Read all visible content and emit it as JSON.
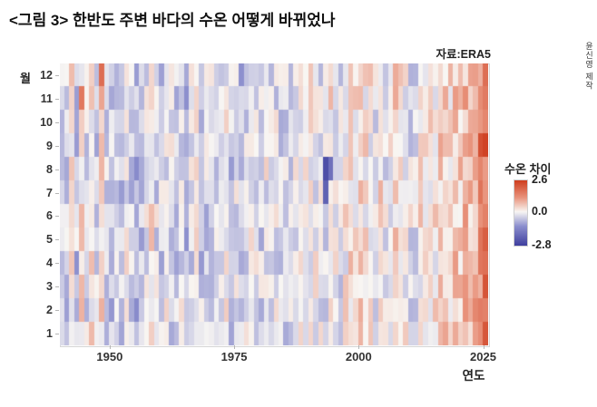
{
  "page": {
    "title": "<그림 3> 한반도 주변 바다의 수온 어떻게 바뀌었나",
    "source": "자료:ERA5",
    "credit": "윤신영 제작"
  },
  "axes": {
    "y_label": "월",
    "x_label": "연도",
    "y_ticks": [
      "12",
      "11",
      "10",
      "9",
      "8",
      "7",
      "6",
      "5",
      "4",
      "3",
      "2",
      "1"
    ],
    "x_ticks": [
      "1950",
      "1975",
      "2000",
      "2025"
    ]
  },
  "legend": {
    "title": "수온 차이",
    "max_label": "2.6",
    "mid_label": "0.0",
    "min_label": "-2.8"
  },
  "chart_data": {
    "type": "heatmap",
    "title": "한반도 주변 바다의 수온 차이 (월별, 연도별)",
    "xlabel": "연도",
    "ylabel": "월",
    "x_start_year": 1940,
    "x_end_year": 2025,
    "x_tick_years": [
      1950,
      1975,
      2000,
      2025
    ],
    "months": [
      1,
      2,
      3,
      4,
      5,
      6,
      7,
      8,
      9,
      10,
      11,
      12
    ],
    "value_range": [
      -2.8,
      2.6
    ],
    "legend_title": "수온 차이",
    "legend_ticks": [
      2.6,
      0.0,
      -2.8
    ],
    "colormap": [
      {
        "v": -2.8,
        "c": "#3f3f9e"
      },
      {
        "v": -1.2,
        "c": "#8b8ecd"
      },
      {
        "v": 0.0,
        "c": "#f8f6f3"
      },
      {
        "v": 1.2,
        "c": "#e8917a"
      },
      {
        "v": 2.6,
        "c": "#ce3d1e"
      }
    ],
    "year_mean_anomaly": [
      -0.2,
      -0.5,
      0.1,
      -0.6,
      0.3,
      -0.4,
      0.2,
      -0.5,
      0.4,
      -0.3,
      -0.6,
      -0.2,
      -0.5,
      0.0,
      -0.4,
      -0.7,
      -0.5,
      -0.1,
      0.2,
      -0.3,
      -0.4,
      -0.1,
      -0.3,
      -0.5,
      -0.2,
      -0.6,
      -0.3,
      -0.1,
      -0.5,
      -0.4,
      -0.2,
      -0.4,
      -0.1,
      0.1,
      -0.5,
      -0.3,
      -0.6,
      -0.2,
      0.0,
      -0.2,
      -0.4,
      -0.1,
      -0.3,
      -0.2,
      -0.4,
      -0.3,
      -0.2,
      0.0,
      0.1,
      0.2,
      0.1,
      -0.1,
      -0.2,
      -0.3,
      0.2,
      -0.1,
      -0.3,
      0.1,
      0.3,
      0.2,
      0.3,
      0.2,
      0.1,
      -0.1,
      0.3,
      -0.2,
      0.1,
      0.4,
      0.2,
      0.1,
      -0.2,
      -0.3,
      0.2,
      0.1,
      0.3,
      0.2,
      0.5,
      0.4,
      0.3,
      0.6,
      0.5,
      0.7,
      0.6,
      0.9,
      1.4,
      1.6
    ],
    "noise_amplitude": 0.6,
    "anomalies": [
      {
        "year": 1993,
        "month": 8,
        "value": -2.5
      },
      {
        "year": 1993,
        "month": 7,
        "value": -2.1
      },
      {
        "year": 1994,
        "month": 8,
        "value": -1.8
      },
      {
        "year": 1948,
        "month": 12,
        "value": 1.8
      },
      {
        "year": 1944,
        "month": 11,
        "value": 1.6
      },
      {
        "year": 2024,
        "month": 9,
        "value": 2.3
      },
      {
        "year": 2025,
        "month": 3,
        "value": 2.2
      },
      {
        "year": 2025,
        "month": 9,
        "value": 2.5
      }
    ]
  }
}
